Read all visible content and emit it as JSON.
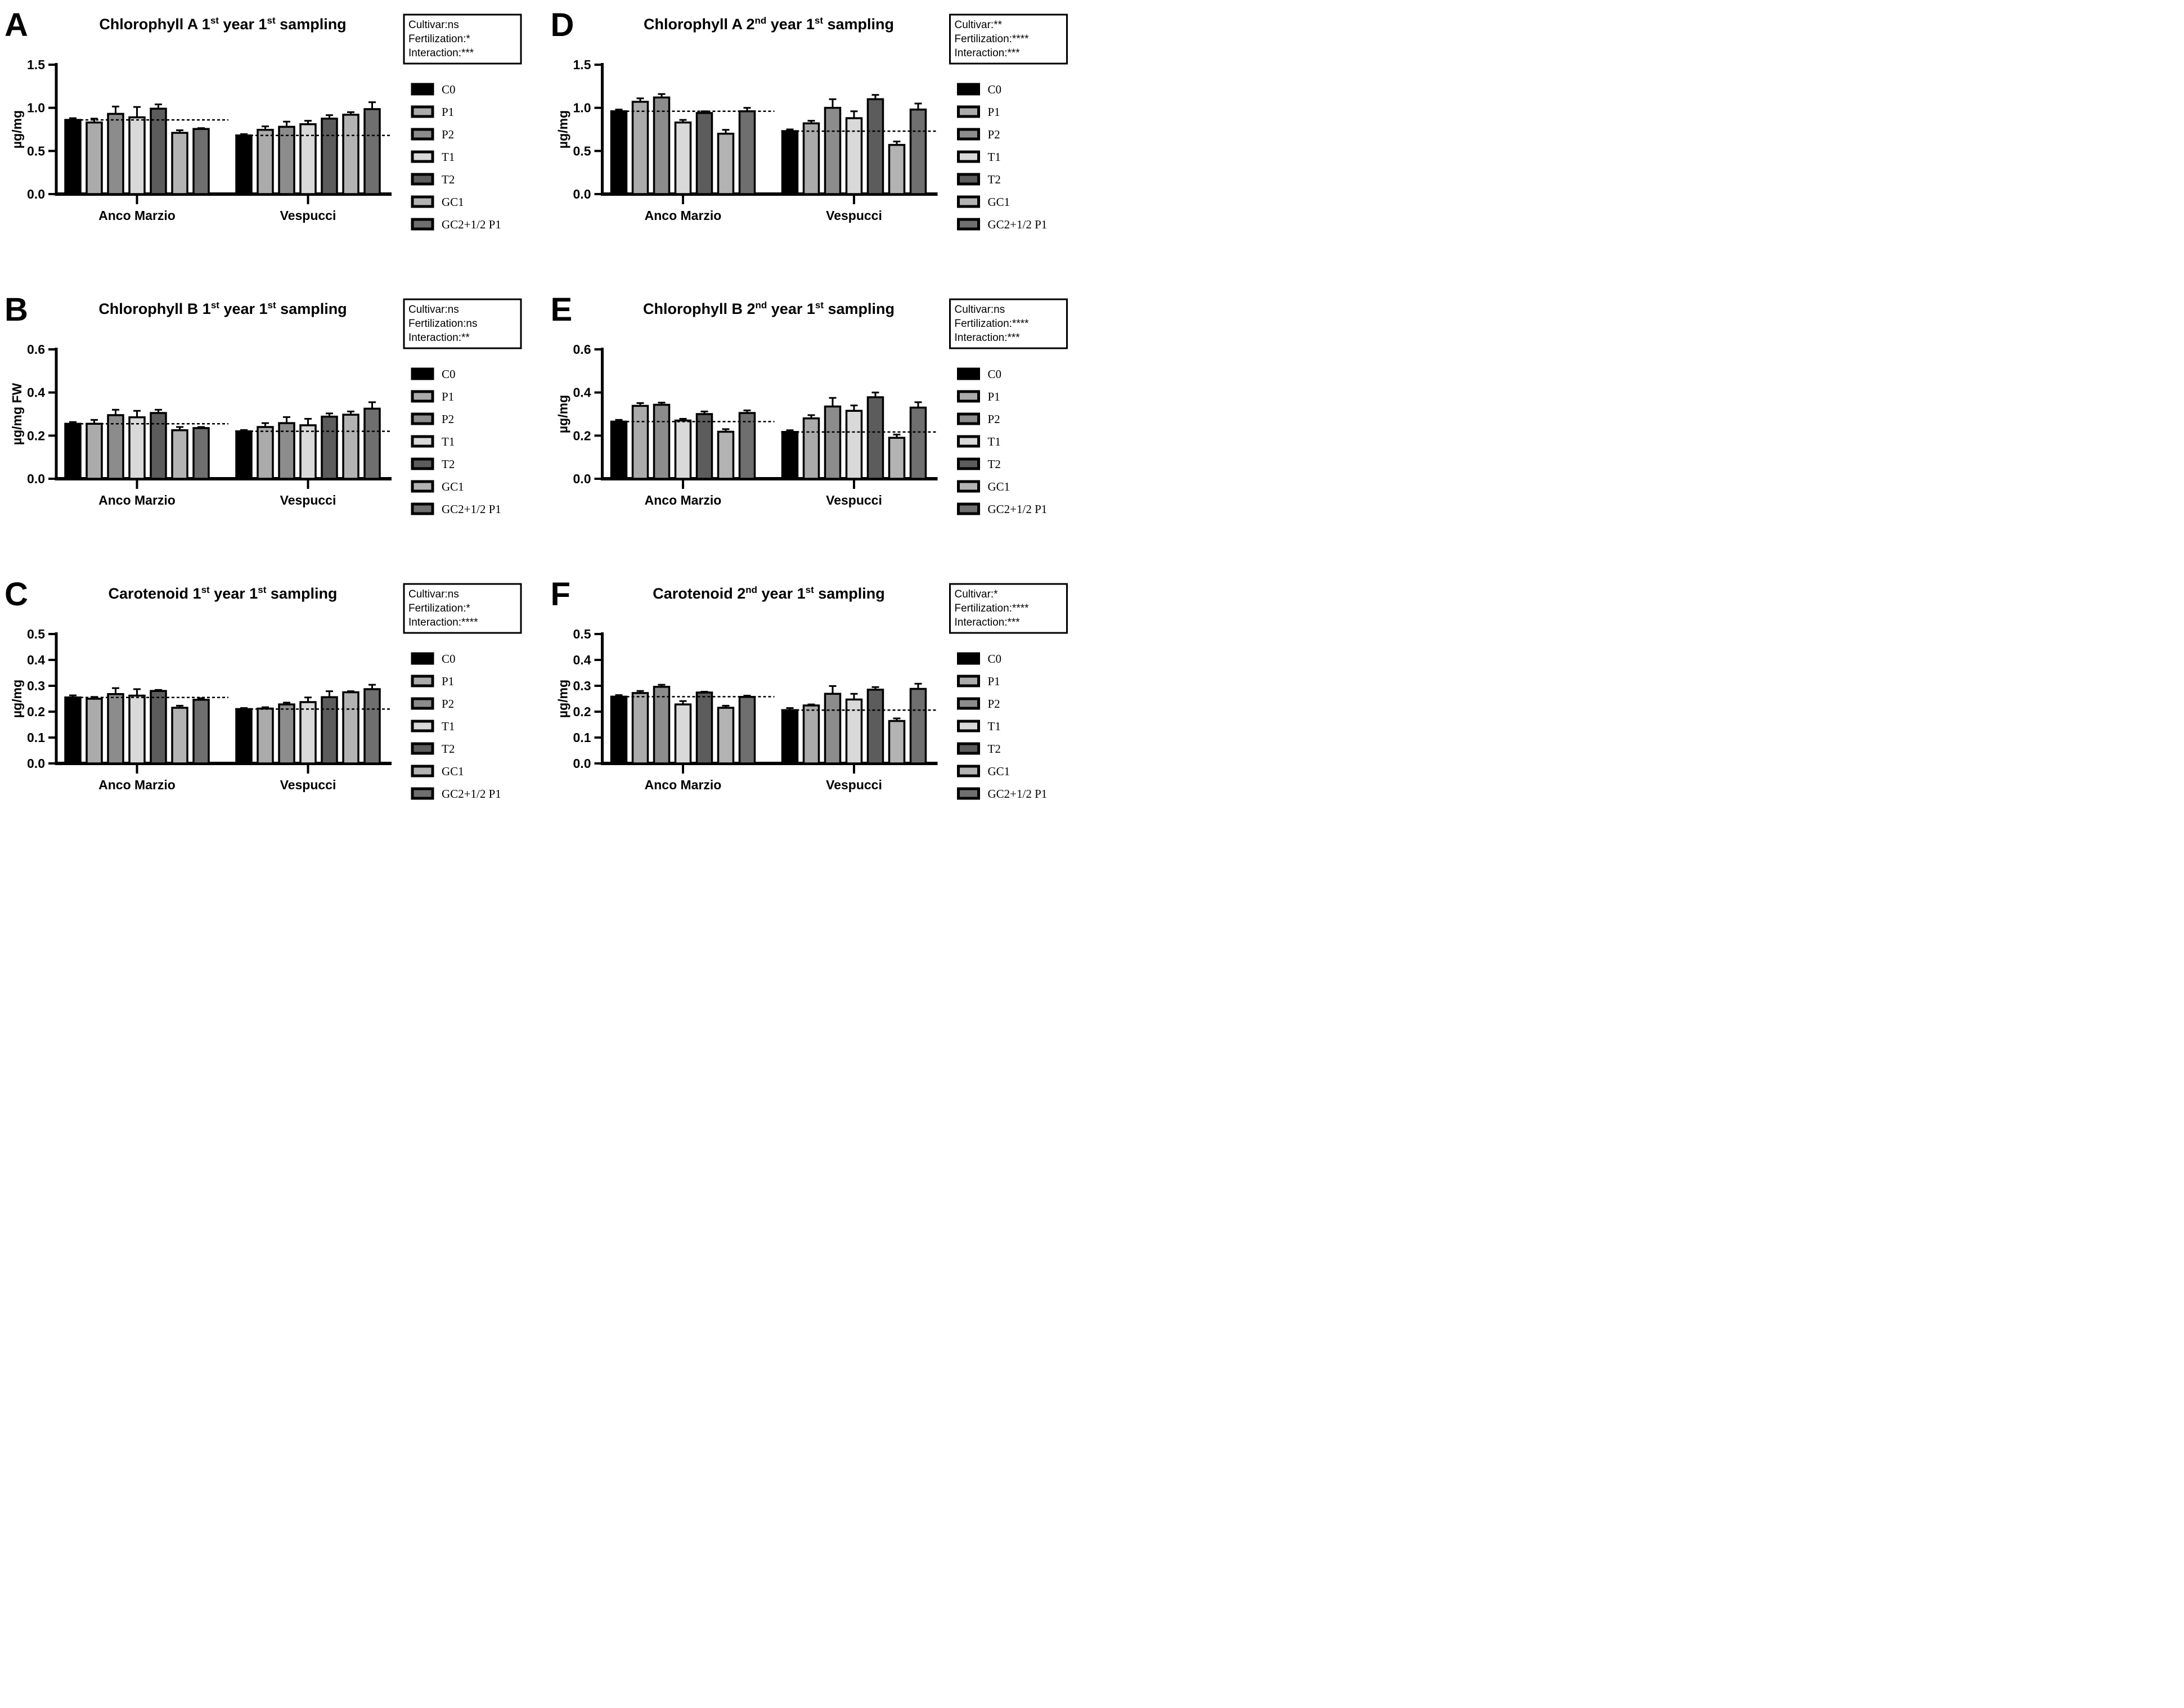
{
  "figure": {
    "background": "#ffffff",
    "panel_letters": [
      "A",
      "D",
      "B",
      "E",
      "C",
      "F"
    ]
  },
  "legend": {
    "items": [
      {
        "label": "C0",
        "color": "#000000"
      },
      {
        "label": "P1",
        "color": "#ABABAB"
      },
      {
        "label": "P2",
        "color": "#8C8C8C"
      },
      {
        "label": "T1",
        "color": "#D9D9D9"
      },
      {
        "label": "T2",
        "color": "#5C5C5C"
      },
      {
        "label": "GC1",
        "color": "#B3B3B3"
      },
      {
        "label": "GC2+1/2 P1",
        "color": "#6F6F6F"
      }
    ]
  },
  "chart_data": [
    {
      "panel": "A",
      "type": "bar",
      "title": "Chlorophyll A 1st year 1st sampling",
      "title_segments": [
        {
          "t": "Chlorophyll A 1"
        },
        {
          "t": "st",
          "sup": true
        },
        {
          "t": " year 1"
        },
        {
          "t": "st",
          "sup": true
        },
        {
          "t": " sampling"
        }
      ],
      "stats_box": [
        "Cultivar:ns",
        "Fertilization:*",
        "Interaction:***"
      ],
      "ylabel": "µg/mg",
      "ylim": [
        0,
        1.5
      ],
      "yticks": [
        "0.0",
        "0.5",
        "1.0",
        "1.5"
      ],
      "categories": [
        "Anco Marzio",
        "Vespucci"
      ],
      "series": [
        {
          "name": "C0",
          "values": [
            0.86,
            0.68
          ],
          "errors": [
            0.02,
            0.015
          ]
        },
        {
          "name": "P1",
          "values": [
            0.83,
            0.745
          ],
          "errors": [
            0.045,
            0.04
          ]
        },
        {
          "name": "P2",
          "values": [
            0.93,
            0.78
          ],
          "errors": [
            0.085,
            0.06
          ]
        },
        {
          "name": "T1",
          "values": [
            0.89,
            0.81
          ],
          "errors": [
            0.12,
            0.04
          ]
        },
        {
          "name": "T2",
          "values": [
            0.99,
            0.875
          ],
          "errors": [
            0.05,
            0.04
          ]
        },
        {
          "name": "GC1",
          "values": [
            0.71,
            0.92
          ],
          "errors": [
            0.03,
            0.03
          ]
        },
        {
          "name": "GC2+1/2 P1",
          "values": [
            0.755,
            0.985
          ],
          "errors": [
            0.01,
            0.08
          ]
        }
      ],
      "dashed_reference_lines": [
        {
          "category": "Anco Marzio",
          "value": 0.86
        },
        {
          "category": "Vespucci",
          "value": 0.68
        }
      ],
      "legend_entries": [
        "C0",
        "P1",
        "P2",
        "T1",
        "T2",
        "GC1",
        "GC2+1/2 P1"
      ],
      "legend_position": "right"
    },
    {
      "panel": "D",
      "type": "bar",
      "title": "Chlorophyll A 2nd year 1st sampling",
      "title_segments": [
        {
          "t": "Chlorophyll A 2"
        },
        {
          "t": "nd",
          "sup": true
        },
        {
          "t": " year 1"
        },
        {
          "t": "st",
          "sup": true
        },
        {
          "t": " sampling"
        }
      ],
      "stats_box": [
        "Cultivar:**",
        "Fertilization:****",
        "Interaction:***"
      ],
      "ylabel": "µg/mg",
      "ylim": [
        0,
        1.5
      ],
      "yticks": [
        "0.0",
        "0.5",
        "1.0",
        "1.5"
      ],
      "categories": [
        "Anco Marzio",
        "Vespucci"
      ],
      "series": [
        {
          "name": "C0",
          "values": [
            0.96,
            0.73
          ],
          "errors": [
            0.02,
            0.02
          ]
        },
        {
          "name": "P1",
          "values": [
            1.07,
            0.82
          ],
          "errors": [
            0.04,
            0.03
          ]
        },
        {
          "name": "P2",
          "values": [
            1.12,
            1.0
          ],
          "errors": [
            0.04,
            0.1
          ]
        },
        {
          "name": "T1",
          "values": [
            0.83,
            0.88
          ],
          "errors": [
            0.03,
            0.08
          ]
        },
        {
          "name": "T2",
          "values": [
            0.94,
            1.1
          ],
          "errors": [
            0.02,
            0.05
          ]
        },
        {
          "name": "GC1",
          "values": [
            0.7,
            0.57
          ],
          "errors": [
            0.045,
            0.04
          ]
        },
        {
          "name": "GC2+1/2 P1",
          "values": [
            0.96,
            0.98
          ],
          "errors": [
            0.04,
            0.07
          ]
        }
      ],
      "dashed_reference_lines": [
        {
          "category": "Anco Marzio",
          "value": 0.96
        },
        {
          "category": "Vespucci",
          "value": 0.73
        }
      ],
      "legend_entries": [
        "C0",
        "P1",
        "P2",
        "T1",
        "T2",
        "GC1",
        "GC2+1/2 P1"
      ],
      "legend_position": "right"
    },
    {
      "panel": "B",
      "type": "bar",
      "title": "Chlorophyll B 1st year 1st sampling",
      "title_segments": [
        {
          "t": "Chlorophyll B 1"
        },
        {
          "t": "st",
          "sup": true
        },
        {
          "t": " year 1"
        },
        {
          "t": "st",
          "sup": true
        },
        {
          "t": " sampling"
        }
      ],
      "stats_box": [
        "Cultivar:ns",
        "Fertilization:ns",
        "Interaction:**"
      ],
      "ylabel": "µg/mg FW",
      "ylim": [
        0,
        0.6
      ],
      "yticks": [
        "0.0",
        "0.2",
        "0.4",
        "0.6"
      ],
      "categories": [
        "Anco Marzio",
        "Vespucci"
      ],
      "series": [
        {
          "name": "C0",
          "values": [
            0.255,
            0.22
          ],
          "errors": [
            0.008,
            0.006
          ]
        },
        {
          "name": "P1",
          "values": [
            0.255,
            0.24
          ],
          "errors": [
            0.018,
            0.018
          ]
        },
        {
          "name": "P2",
          "values": [
            0.295,
            0.258
          ],
          "errors": [
            0.025,
            0.028
          ]
        },
        {
          "name": "T1",
          "values": [
            0.285,
            0.248
          ],
          "errors": [
            0.03,
            0.03
          ]
        },
        {
          "name": "T2",
          "values": [
            0.305,
            0.288
          ],
          "errors": [
            0.015,
            0.015
          ]
        },
        {
          "name": "GC1",
          "values": [
            0.225,
            0.297
          ],
          "errors": [
            0.015,
            0.015
          ]
        },
        {
          "name": "GC2+1/2 P1",
          "values": [
            0.235,
            0.325
          ],
          "errors": [
            0.005,
            0.03
          ]
        }
      ],
      "dashed_reference_lines": [
        {
          "category": "Anco Marzio",
          "value": 0.255
        },
        {
          "category": "Vespucci",
          "value": 0.22
        }
      ],
      "legend_entries": [
        "C0",
        "P1",
        "P2",
        "T1",
        "T2",
        "GC1",
        "GC2+1/2 P1"
      ],
      "legend_position": "right"
    },
    {
      "panel": "E",
      "type": "bar",
      "title": "Chlorophyll B 2nd year 1st sampling",
      "title_segments": [
        {
          "t": "Chlorophyll B 2"
        },
        {
          "t": "nd",
          "sup": true
        },
        {
          "t": " year 1"
        },
        {
          "t": "st",
          "sup": true
        },
        {
          "t": " sampling"
        }
      ],
      "stats_box": [
        "Cultivar:ns",
        "Fertilization:****",
        "Interaction:***"
      ],
      "ylabel": "µg/mg",
      "ylim": [
        0,
        0.6
      ],
      "yticks": [
        "0.0",
        "0.2",
        "0.4",
        "0.6"
      ],
      "categories": [
        "Anco Marzio",
        "Vespucci"
      ],
      "series": [
        {
          "name": "C0",
          "values": [
            0.265,
            0.217
          ],
          "errors": [
            0.008,
            0.008
          ]
        },
        {
          "name": "P1",
          "values": [
            0.338,
            0.28
          ],
          "errors": [
            0.013,
            0.015
          ]
        },
        {
          "name": "P2",
          "values": [
            0.343,
            0.335
          ],
          "errors": [
            0.01,
            0.04
          ]
        },
        {
          "name": "T1",
          "values": [
            0.27,
            0.315
          ],
          "errors": [
            0.008,
            0.025
          ]
        },
        {
          "name": "T2",
          "values": [
            0.3,
            0.378
          ],
          "errors": [
            0.012,
            0.022
          ]
        },
        {
          "name": "GC1",
          "values": [
            0.218,
            0.19
          ],
          "errors": [
            0.012,
            0.015
          ]
        },
        {
          "name": "GC2+1/2 P1",
          "values": [
            0.305,
            0.33
          ],
          "errors": [
            0.012,
            0.025
          ]
        }
      ],
      "dashed_reference_lines": [
        {
          "category": "Anco Marzio",
          "value": 0.265
        },
        {
          "category": "Vespucci",
          "value": 0.217
        }
      ],
      "legend_entries": [
        "C0",
        "P1",
        "P2",
        "T1",
        "T2",
        "GC1",
        "GC2+1/2 P1"
      ],
      "legend_position": "right"
    },
    {
      "panel": "C",
      "type": "bar",
      "title": "Carotenoid 1st year 1st sampling",
      "title_segments": [
        {
          "t": "Carotenoid 1"
        },
        {
          "t": "st",
          "sup": true
        },
        {
          "t": " year 1"
        },
        {
          "t": "st",
          "sup": true
        },
        {
          "t": " sampling"
        }
      ],
      "stats_box": [
        "Cultivar:ns",
        "Fertilization:*",
        "Interaction:****"
      ],
      "ylabel": "µg/mg",
      "ylim": [
        0,
        0.5
      ],
      "yticks": [
        "0.0",
        "0.1",
        "0.2",
        "0.3",
        "0.4",
        "0.5"
      ],
      "categories": [
        "Anco Marzio",
        "Vespucci"
      ],
      "series": [
        {
          "name": "C0",
          "values": [
            0.255,
            0.21
          ],
          "errors": [
            0.008,
            0.004
          ]
        },
        {
          "name": "P1",
          "values": [
            0.25,
            0.212
          ],
          "errors": [
            0.007,
            0.005
          ]
        },
        {
          "name": "P2",
          "values": [
            0.268,
            0.228
          ],
          "errors": [
            0.023,
            0.007
          ]
        },
        {
          "name": "T1",
          "values": [
            0.262,
            0.237
          ],
          "errors": [
            0.025,
            0.018
          ]
        },
        {
          "name": "T2",
          "values": [
            0.28,
            0.256
          ],
          "errors": [
            0.004,
            0.023
          ]
        },
        {
          "name": "GC1",
          "values": [
            0.215,
            0.275
          ],
          "errors": [
            0.008,
            0.004
          ]
        },
        {
          "name": "GC2+1/2 P1",
          "values": [
            0.246,
            0.287
          ],
          "errors": [
            0.006,
            0.017
          ]
        }
      ],
      "dashed_reference_lines": [
        {
          "category": "Anco Marzio",
          "value": 0.255
        },
        {
          "category": "Vespucci",
          "value": 0.21
        }
      ],
      "legend_entries": [
        "C0",
        "P1",
        "P2",
        "T1",
        "T2",
        "GC1",
        "GC2+1/2 P1"
      ],
      "legend_position": "right"
    },
    {
      "panel": "F",
      "type": "bar",
      "title": "Carotenoid 2nd year 1st sampling",
      "title_segments": [
        {
          "t": "Carotenoid 2"
        },
        {
          "t": "nd",
          "sup": true
        },
        {
          "t": " year 1"
        },
        {
          "t": "st",
          "sup": true
        },
        {
          "t": " sampling"
        }
      ],
      "stats_box": [
        "Cultivar:*",
        "Fertilization:****",
        "Interaction:***"
      ],
      "ylabel": "µg/mg",
      "ylim": [
        0,
        0.5
      ],
      "yticks": [
        "0.0",
        "0.1",
        "0.2",
        "0.3",
        "0.4",
        "0.5"
      ],
      "categories": [
        "Anco Marzio",
        "Vespucci"
      ],
      "series": [
        {
          "name": "C0",
          "values": [
            0.258,
            0.206
          ],
          "errors": [
            0.006,
            0.008
          ]
        },
        {
          "name": "P1",
          "values": [
            0.272,
            0.224
          ],
          "errors": [
            0.008,
            0.004
          ]
        },
        {
          "name": "P2",
          "values": [
            0.296,
            0.269
          ],
          "errors": [
            0.008,
            0.03
          ]
        },
        {
          "name": "T1",
          "values": [
            0.228,
            0.247
          ],
          "errors": [
            0.013,
            0.022
          ]
        },
        {
          "name": "T2",
          "values": [
            0.274,
            0.285
          ],
          "errors": [
            0.003,
            0.01
          ]
        },
        {
          "name": "GC1",
          "values": [
            0.215,
            0.164
          ],
          "errors": [
            0.008,
            0.01
          ]
        },
        {
          "name": "GC2+1/2 P1",
          "values": [
            0.257,
            0.288
          ],
          "errors": [
            0.005,
            0.02
          ]
        }
      ],
      "dashed_reference_lines": [
        {
          "category": "Anco Marzio",
          "value": 0.258
        },
        {
          "category": "Vespucci",
          "value": 0.206
        }
      ],
      "legend_entries": [
        "C0",
        "P1",
        "P2",
        "T1",
        "T2",
        "GC1",
        "GC2+1/2 P1"
      ],
      "legend_position": "right"
    }
  ]
}
